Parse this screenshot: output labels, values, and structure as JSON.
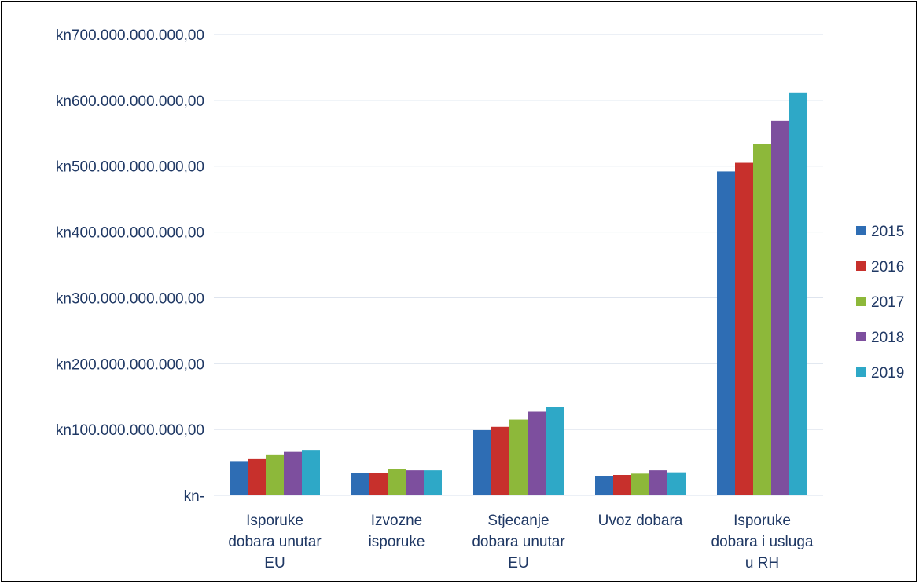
{
  "chart_data": {
    "type": "bar",
    "title": "",
    "xlabel": "",
    "ylabel": "",
    "categories": [
      [
        "Isporuke",
        "dobara unutar",
        "EU"
      ],
      [
        "Izvozne",
        "isporuke"
      ],
      [
        "Stjecanje",
        "dobara unutar",
        "EU"
      ],
      [
        "Uvoz dobara"
      ],
      [
        "Isporuke",
        "dobara i usluga",
        "u RH"
      ]
    ],
    "series": [
      {
        "name": "2015",
        "color": "#2e6db4",
        "values": [
          52000000000,
          34000000000,
          99000000000,
          29000000000,
          492000000000
        ]
      },
      {
        "name": "2016",
        "color": "#c7302c",
        "values": [
          55000000000,
          34000000000,
          104000000000,
          31000000000,
          505000000000
        ]
      },
      {
        "name": "2017",
        "color": "#8db83a",
        "values": [
          61000000000,
          40000000000,
          115000000000,
          33000000000,
          534000000000
        ]
      },
      {
        "name": "2018",
        "color": "#7d4f9e",
        "values": [
          66000000000,
          38000000000,
          127000000000,
          38000000000,
          569000000000
        ]
      },
      {
        "name": "2019",
        "color": "#2ea8c7",
        "values": [
          69000000000,
          38000000000,
          134000000000,
          35000000000,
          612000000000
        ]
      }
    ],
    "ylim": [
      0,
      700000000000
    ],
    "y_ticks": [
      {
        "value": 0,
        "label": "kn-"
      },
      {
        "value": 100000000000,
        "label": "kn100.000.000.000,00"
      },
      {
        "value": 200000000000,
        "label": "kn200.000.000.000,00"
      },
      {
        "value": 300000000000,
        "label": "kn300.000.000.000,00"
      },
      {
        "value": 400000000000,
        "label": "kn400.000.000.000,00"
      },
      {
        "value": 500000000000,
        "label": "kn500.000.000.000,00"
      },
      {
        "value": 600000000000,
        "label": "kn600.000.000.000,00"
      },
      {
        "value": 700000000000,
        "label": "kn700.000.000.000,00"
      }
    ],
    "grid": true,
    "legend_position": "right",
    "colors": {
      "gridline": "#d9e1ec",
      "axis_text": "#1f3864"
    }
  }
}
